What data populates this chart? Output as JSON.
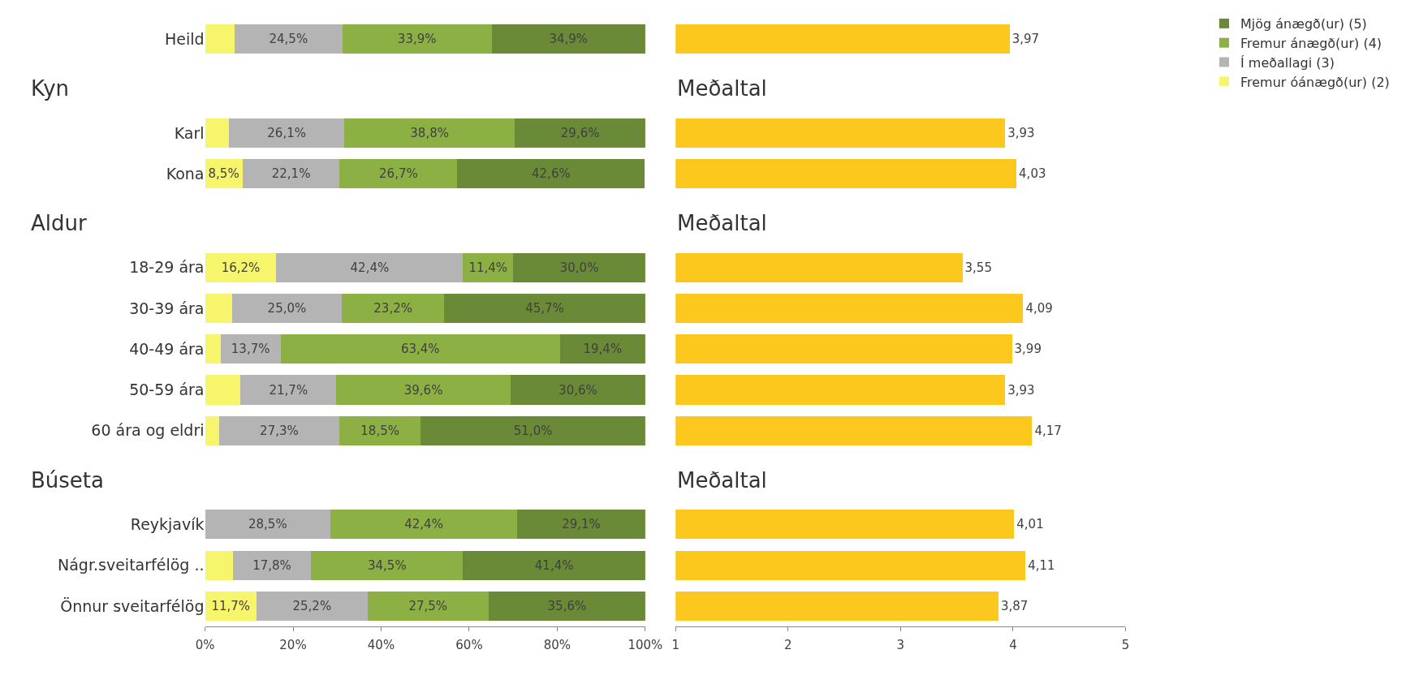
{
  "chart_data": [
    {
      "type": "bar",
      "orientation": "horizontal",
      "stacked": true,
      "legend": "right",
      "tick_labels": "y",
      "categories": [
        "Heild"
      ],
      "xlim": [
        0,
        100
      ],
      "series": [
        {
          "name": "Fremur óánægð(ur) (2)",
          "color": "#f7f56b",
          "values": [
            6.7
          ],
          "value_labels": [
            null
          ]
        },
        {
          "name": "Í meðallagi (3)",
          "color": "#b4b4b4",
          "values": [
            24.5
          ],
          "value_labels": [
            "24,5%"
          ]
        },
        {
          "name": "Fremur ánægð(ur) (4)",
          "color": "#8cb043",
          "values": [
            33.9
          ],
          "value_labels": [
            "33,9%"
          ]
        },
        {
          "name": "Mjög ánægð(ur) (5)",
          "color": "#6a8a38",
          "values": [
            34.9
          ],
          "value_labels": [
            "34,9%"
          ]
        }
      ]
    },
    {
      "type": "bar",
      "orientation": "horizontal",
      "tick_labels": false,
      "categories": [
        null
      ],
      "xlim": [
        1,
        5
      ],
      "color": "#fcc81e",
      "values": [
        3.97
      ],
      "value_labels": [
        "3,97"
      ]
    },
    {
      "type": "bar",
      "orientation": "horizontal",
      "stacked": true,
      "title": "Kyn",
      "tick_labels": "y",
      "categories": [
        "Karl",
        "Kona"
      ],
      "xlim": [
        0,
        100
      ],
      "series": [
        {
          "color": "#f7f56b",
          "values": [
            5.5,
            8.5
          ],
          "value_labels": [
            null,
            "8,5%"
          ]
        },
        {
          "color": "#b4b4b4",
          "values": [
            26.1,
            22.1
          ],
          "value_labels": [
            "26,1%",
            "22,1%"
          ]
        },
        {
          "color": "#8cb043",
          "values": [
            38.8,
            26.7
          ],
          "value_labels": [
            "38,8%",
            "26,7%"
          ]
        },
        {
          "color": "#6a8a38",
          "values": [
            29.6,
            42.6
          ],
          "value_labels": [
            "29,6%",
            "42,6%"
          ]
        }
      ]
    },
    {
      "type": "bar",
      "orientation": "horizontal",
      "title": "Meðaltal",
      "tick_labels": false,
      "categories": [
        null,
        null
      ],
      "xlim": [
        1,
        5
      ],
      "color": "#fcc81e",
      "values": [
        3.93,
        4.03
      ],
      "value_labels": [
        "3,93",
        "4,03"
      ]
    },
    {
      "type": "bar",
      "orientation": "horizontal",
      "stacked": true,
      "title": "Aldur",
      "tick_labels": "y",
      "categories": [
        "18-29 ára",
        "30-39 ára",
        "40-49 ára",
        "50-59 ára",
        "60 ára og eldri"
      ],
      "xlim": [
        0,
        100
      ],
      "series": [
        {
          "color": "#f7f56b",
          "values": [
            16.2,
            6.1,
            3.5,
            8.1,
            3.2
          ],
          "value_labels": [
            "16,2%",
            null,
            null,
            null,
            null
          ]
        },
        {
          "color": "#b4b4b4",
          "values": [
            42.4,
            25.0,
            13.7,
            21.7,
            27.3
          ],
          "value_labels": [
            "42,4%",
            "25,0%",
            "13,7%",
            "21,7%",
            "27,3%"
          ]
        },
        {
          "color": "#8cb043",
          "values": [
            11.4,
            23.2,
            63.4,
            39.6,
            18.5
          ],
          "value_labels": [
            "11,4%",
            "23,2%",
            "63,4%",
            "39,6%",
            "18,5%"
          ]
        },
        {
          "color": "#6a8a38",
          "values": [
            30.0,
            45.7,
            19.4,
            30.6,
            51.0
          ],
          "value_labels": [
            "30,0%",
            "45,7%",
            "19,4%",
            "30,6%",
            "51,0%"
          ]
        }
      ]
    },
    {
      "type": "bar",
      "orientation": "horizontal",
      "title": "Meðaltal",
      "tick_labels": false,
      "categories": [
        null,
        null,
        null,
        null,
        null
      ],
      "xlim": [
        1,
        5
      ],
      "color": "#fcc81e",
      "values": [
        3.55,
        4.09,
        3.99,
        3.93,
        4.17
      ],
      "value_labels": [
        "3,55",
        "4,09",
        "3,99",
        "3,93",
        "4,17"
      ]
    },
    {
      "type": "bar",
      "orientation": "horizontal",
      "stacked": true,
      "title": "Búseta",
      "categories": [
        "Reykjavík",
        "Nágr.sveitarfélög ..",
        "Önnur sveitarfélög"
      ],
      "xlim": [
        0,
        100
      ],
      "xticks": [
        {
          "value": 0,
          "label": "0%"
        },
        {
          "value": 20,
          "label": "20%"
        },
        {
          "value": 40,
          "label": "40%"
        },
        {
          "value": 60,
          "label": "60%"
        },
        {
          "value": 80,
          "label": "80%"
        },
        {
          "value": 100,
          "label": "100%"
        }
      ],
      "series": [
        {
          "color": "#f7f56b",
          "values": [
            0,
            6.3,
            11.7
          ],
          "value_labels": [
            null,
            null,
            "11,7%"
          ]
        },
        {
          "color": "#b4b4b4",
          "values": [
            28.5,
            17.8,
            25.2
          ],
          "value_labels": [
            "28,5%",
            "17,8%",
            "25,2%"
          ]
        },
        {
          "color": "#8cb043",
          "values": [
            42.4,
            34.5,
            27.5
          ],
          "value_labels": [
            "42,4%",
            "34,5%",
            "27,5%"
          ]
        },
        {
          "color": "#6a8a38",
          "values": [
            29.1,
            41.4,
            35.6
          ],
          "value_labels": [
            "29,1%",
            "41,4%",
            "35,6%"
          ]
        }
      ]
    },
    {
      "type": "bar",
      "orientation": "horizontal",
      "title": "Meðaltal",
      "tick_labels": "x",
      "categories": [
        null,
        null,
        null
      ],
      "xlim": [
        1,
        5
      ],
      "xticks": [
        1,
        2,
        3,
        4,
        5
      ],
      "color": "#fcc81e",
      "values": [
        4.01,
        4.11,
        3.87
      ],
      "value_labels": [
        "4,01",
        "4,11",
        "3,87"
      ]
    }
  ]
}
